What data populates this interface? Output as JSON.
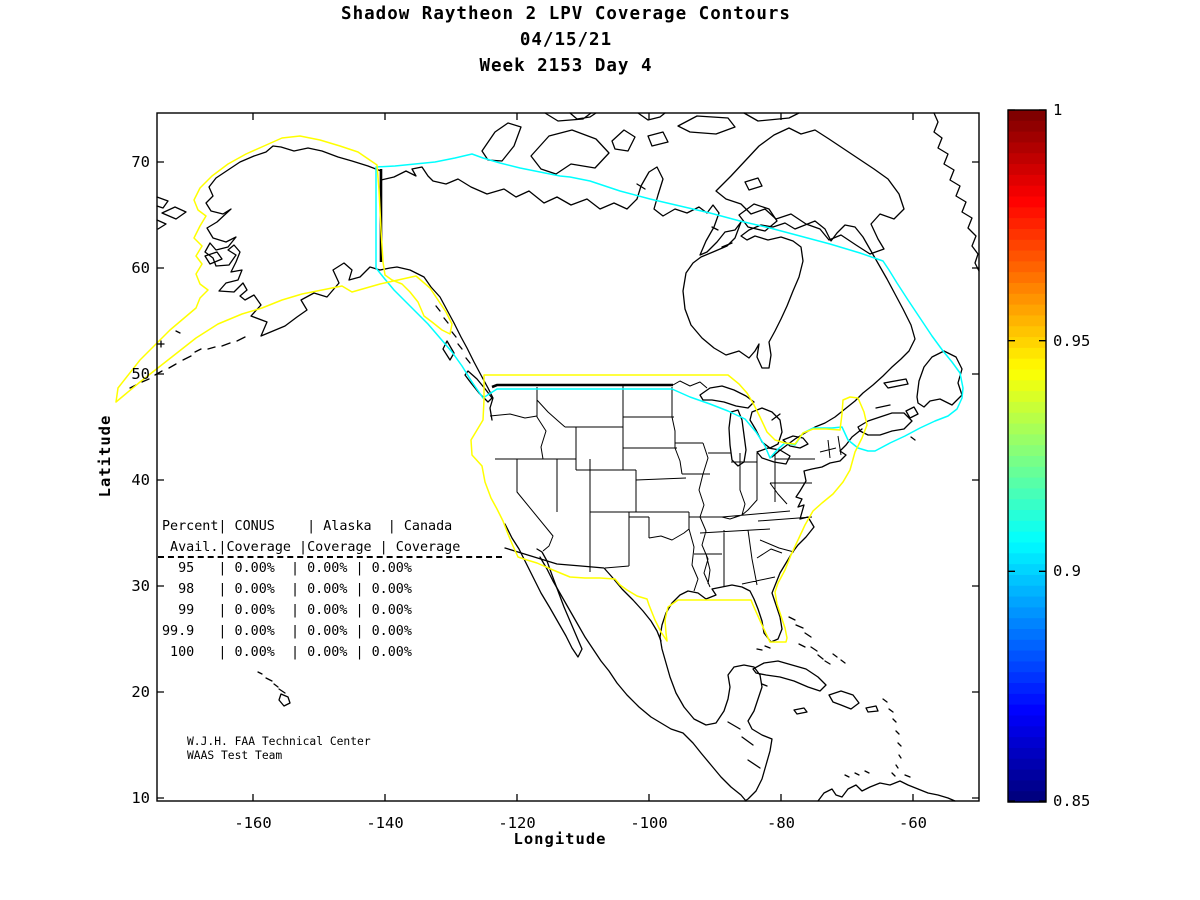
{
  "title": {
    "line1": "Shadow Raytheon 2 LPV Coverage Contours",
    "line2": "04/15/21",
    "line3": "Week 2153 Day 4"
  },
  "axes": {
    "xlabel": "Longitude",
    "ylabel": "Latitude",
    "xticks": [
      {
        "label": "-160"
      },
      {
        "label": "-140"
      },
      {
        "label": "-120"
      },
      {
        "label": "-100"
      },
      {
        "label": "-80"
      },
      {
        "label": "-60"
      }
    ],
    "yticks": [
      {
        "label": "70"
      },
      {
        "label": "60"
      },
      {
        "label": "50"
      },
      {
        "label": "40"
      },
      {
        "label": "30"
      },
      {
        "label": "20"
      },
      {
        "label": "10"
      }
    ]
  },
  "colorbar": {
    "tick_labels": [
      {
        "label": "1"
      },
      {
        "label": "0.95"
      },
      {
        "label": "0.9"
      },
      {
        "label": "0.85"
      }
    ]
  },
  "table": {
    "header_line1": "Percent| CONUS    | Alaska  | Canada",
    "header_line2": " Avail.|Coverage |Coverage | Coverage",
    "rows": [
      "  95   | 0.00%  | 0.00% | 0.00%",
      "  98   | 0.00%  | 0.00% | 0.00%",
      "  99   | 0.00%  | 0.00% | 0.00%",
      "99.9   | 0.00%  | 0.00% | 0.00%",
      " 100   | 0.00%  | 0.00% | 0.00%"
    ]
  },
  "credits": {
    "line1": "W.J.H. FAA Technical Center",
    "line2": "WAAS Test Team"
  },
  "chart_data": {
    "type": "contour-map",
    "title": "Shadow Raytheon 2 LPV Coverage Contours",
    "subtitle_date": "04/15/21",
    "subtitle_week": "Week 2153 Day 4",
    "xlabel": "Longitude",
    "ylabel": "Latitude",
    "xlim": [
      -175,
      -50
    ],
    "ylim": [
      10,
      75
    ],
    "xticks": [
      -160,
      -140,
      -120,
      -100,
      -80,
      -60
    ],
    "yticks": [
      10,
      20,
      30,
      40,
      50,
      60,
      70
    ],
    "grid": false,
    "colorbar": {
      "colormap": "jet",
      "min": 0.85,
      "max": 1.0,
      "bands": 64,
      "ticks": [
        1,
        0.95,
        0.9,
        0.85
      ]
    },
    "contour_lines": [
      {
        "color": "#ffff00",
        "approx_level": 0.95,
        "outlines": "Alaska and CONUS service area boundaries"
      },
      {
        "color": "#00ffff",
        "approx_level": 0.9,
        "outlines": "Canada service area boundary"
      }
    ],
    "coverage_table": {
      "availability_percent": [
        95,
        98,
        99,
        99.9,
        100
      ],
      "series": [
        {
          "name": "CONUS Coverage",
          "values": [
            "0.00%",
            "0.00%",
            "0.00%",
            "0.00%",
            "0.00%"
          ]
        },
        {
          "name": "Alaska Coverage",
          "values": [
            "0.00%",
            "0.00%",
            "0.00%",
            "0.00%",
            "0.00%"
          ]
        },
        {
          "name": "Canada Coverage",
          "values": [
            "0.00%",
            "0.00%",
            "0.00%",
            "0.00%",
            "0.00%"
          ]
        }
      ]
    }
  }
}
